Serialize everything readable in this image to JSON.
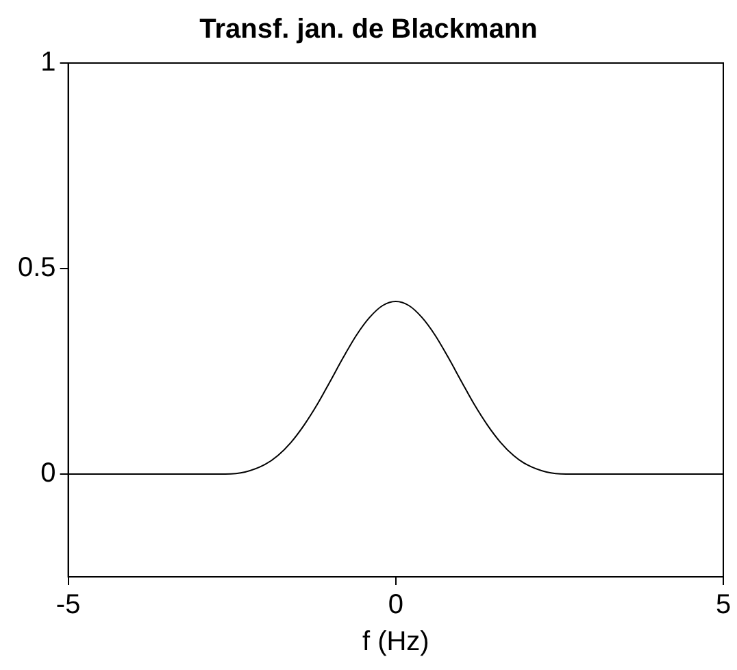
{
  "chart_data": {
    "type": "line",
    "title": "Transf. jan. de Blackmann",
    "xlabel": "f (Hz)",
    "x": [
      -5,
      -2.6,
      -2.3,
      -2,
      -1.8,
      -1.6,
      -1.4,
      -1.2,
      -1,
      -0.8,
      -0.6,
      -0.4,
      -0.2,
      0,
      0.2,
      0.4,
      0.6,
      0.8,
      1,
      1.2,
      1.4,
      1.6,
      1.8,
      2,
      2.3,
      2.6,
      5
    ],
    "series": [
      {
        "color": "#000000",
        "values": [
          0,
          0,
          0.005,
          0.023,
          0.045,
          0.077,
          0.119,
          0.169,
          0.226,
          0.284,
          0.338,
          0.381,
          0.41,
          0.42,
          0.41,
          0.381,
          0.338,
          0.284,
          0.226,
          0.169,
          0.119,
          0.077,
          0.045,
          0.023,
          0.005,
          0,
          0
        ]
      }
    ],
    "xlim": [
      -5,
      5
    ],
    "xticks": [
      -5,
      0,
      5
    ],
    "ylim": [
      -0.25,
      1
    ],
    "yticks": [
      0,
      0.5,
      1
    ],
    "grid": false,
    "legend": false,
    "marker": "none",
    "line_style": "solid"
  }
}
